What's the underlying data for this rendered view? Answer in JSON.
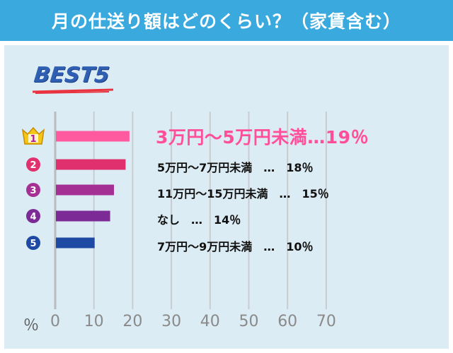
{
  "header": {
    "title": "月の仕送り額はどのくらい？（家賃含む）"
  },
  "badge": {
    "text": "BEST5"
  },
  "colors": {
    "header_bg": "#3aa9de",
    "panel_bg": "#dcecf4",
    "rank1": "#ff5aa0",
    "rank2": "#e0306e",
    "rank3": "#a43093",
    "rank4": "#7b2a96",
    "rank5": "#1f4aa3"
  },
  "chart_data": {
    "type": "bar",
    "orientation": "horizontal",
    "categories": [
      "3万円～5万円未満",
      "5万円～7万円未満",
      "11万円～15万円未満",
      "なし",
      "7万円～9万円未満"
    ],
    "values": [
      19,
      18,
      15,
      14,
      10
    ],
    "ranks": [
      "1",
      "2",
      "3",
      "4",
      "5"
    ],
    "labels": [
      "3万円～5万円未満…19％",
      "5万円～7万円未満　…　18％",
      "11万円～15万円未満　…　15％",
      "なし　…　14％",
      "7万円～9万円未満　…　10％"
    ],
    "xlim": [
      0,
      70
    ],
    "xticks": [
      "0",
      "10",
      "20",
      "30",
      "40",
      "50",
      "60",
      "70"
    ],
    "xunit": "％",
    "grid": true
  }
}
